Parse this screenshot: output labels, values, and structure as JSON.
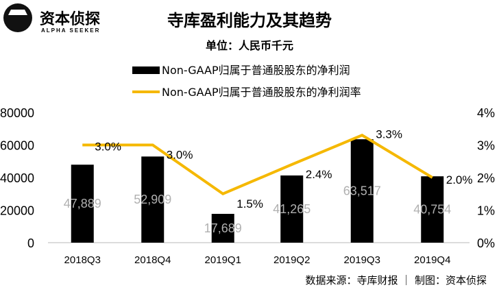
{
  "logo": {
    "name_cn": "资本侦探",
    "name_en": "ALPHA SEEKER"
  },
  "chart_data": {
    "type": "bar+line",
    "title": "寺库盈利能力及其趋势",
    "subtitle": "单位：人民币千元",
    "categories": [
      "2018Q3",
      "2018Q4",
      "2019Q1",
      "2019Q2",
      "2019Q3",
      "2019Q4"
    ],
    "series": [
      {
        "name": "Non-GAAP归属于普通股股东的净利润",
        "type": "bar",
        "axis": "left",
        "color": "#000000",
        "values": [
          47889,
          52909,
          17689,
          41265,
          63517,
          40754
        ],
        "labels": [
          "47,889",
          "52,909",
          "17,689",
          "41,265",
          "63,517",
          "40,754"
        ]
      },
      {
        "name": "Non-GAAP归属于普通股股东的净利润率",
        "type": "line",
        "axis": "right",
        "color": "#F5B800",
        "values": [
          3.0,
          3.0,
          1.5,
          2.4,
          3.3,
          2.0
        ],
        "labels": [
          "3.0%",
          "3.0%",
          "1.5%",
          "2.4%",
          "3.3%",
          "2.0%"
        ]
      }
    ],
    "y_left": {
      "ylim": [
        0,
        80000
      ],
      "ticks": [
        "0",
        "20000",
        "40000",
        "60000",
        "80000"
      ]
    },
    "y_right": {
      "ylim": [
        0,
        4
      ],
      "ticks": [
        "0%",
        "1%",
        "2%",
        "3%",
        "4%"
      ]
    },
    "legend_position": "top",
    "grid": false
  },
  "footer": "数据来源：寺库财报 ｜ 制图：资本侦探"
}
